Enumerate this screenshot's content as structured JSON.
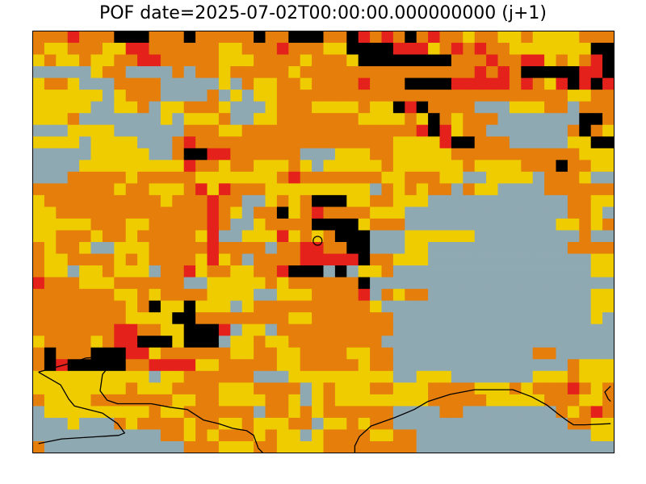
{
  "chart_data": {
    "type": "heatmap",
    "title": "POF date=2025-07-02T00:00:00.000000000 (j+1)",
    "xlabel": "",
    "ylabel": "",
    "legend": "none",
    "grid": false,
    "n_cols": 50,
    "n_rows": 36,
    "class_colors": {
      "0": "#8fa9b2",
      "1": "#efcc00",
      "2": "#e57e0b",
      "3": "#e5211c",
      "4": "#000000"
    },
    "rows": [
      "22232224442224222224224442243232423221221121111222",
      "21122211332222221122232221144443331232322111111144",
      "12112112233222221112222122214444444422232233121234",
      "00000122000020221222221222222222222222323244444334",
      "12210002222000001021122122223222444433333232134343",
      "11111101222000020101122222222222222222222222221122",
      "11111001120112221000122211112114342222000111220222",
      "11120000000101112001122222221111214212220000000442",
      "00011110000002221122222222222222234312200000002421",
      "11110111100023222222222222222221111344222000001144",
      "00000111110024433222222000111221111122222222222111",
      "00001111111113221221112101111121111112111122242211",
      "00022222122222111111123222222211222110011110222100",
      "22222221221112313222111111111021212202110000222222",
      "12222222222122232200121244411221110000000000002211",
      "11222222222222232102241232222111000000000000002210",
      "11111222112222232001222244441222000000000000011212",
      "11222122122222130011131212444000111111000000000200",
      "21221001112222232222022332244000110000000000002222",
      "21122221212222131202222333334221110000000000000011",
      "21101121110223122112234440401120000000000000000011",
      "32221112222220011111212222224000000000000000000000",
      "22222221121222211110011122223021220000000000000011",
      "22222222124114111012222222222100000000000000000011",
      "22222222111144222222221122222220000000000000000010",
      "22222223322114443011022222222220000000000000000000",
      "12222123344414440112112222222200000000000000000000",
      "24222444331222222112211222211220000000000002200000",
      "24344444223333112222211222221220000000000000002111",
      "11111111110112222220001111111110011100000001112111",
      "11111111211122221112222012111221112222111212223212",
      "21111222222211221111221012111111112222211111222112",
      "01111111112112222220221212222220000220000000021232",
      "00010002122221221121112201121220000000000000002211",
      "00000000000221212221211012222112200000000000000011",
      "20000000000002221112211112222222200000000000000000"
    ],
    "markers": [
      {
        "type": "circle",
        "col": 24.5,
        "row": 17.9
      }
    ],
    "coastlines": [
      "M0.5,29.1 L3.4,28.3 L4.6,27.9 L6.3,27.8 L6.6,28.0 L6.4,28.8 L6.0,29.3 L5.8,30.7 L6.4,31.5 L7.3,31.8 L10.2,31.8 L11.8,32.1 L13.3,32.3 L14.7,33.2 L16.0,33.5 L17.2,33.9 L18.4,34.1 L19.0,34.5 L19.4,35.6 L19.8,36.0",
      "M0.5,29.1 L2.4,30.2 L3.1,31.4 L3.6,32.0 L6.0,32.6 L7.3,33.5 L7.9,34.3 L7.4,34.5 L2.5,34.8 L0.5,35.2",
      "M27.7,36.0 L27.7,35.4 L28.1,34.6 L29.1,33.7 L31.1,33.0 L32.8,32.3 L34.0,31.6 L35.9,31.0 L38.0,30.6 L41.3,30.6 L42.9,31.2 L44.2,31.9 L45.1,32.6 L45.9,33.2 L46.5,33.6 L47.5,33.6 L49.7,33.5",
      "M49.7,30.3 L49.2,30.8 L49.5,31.4 L49.7,31.6"
    ]
  }
}
